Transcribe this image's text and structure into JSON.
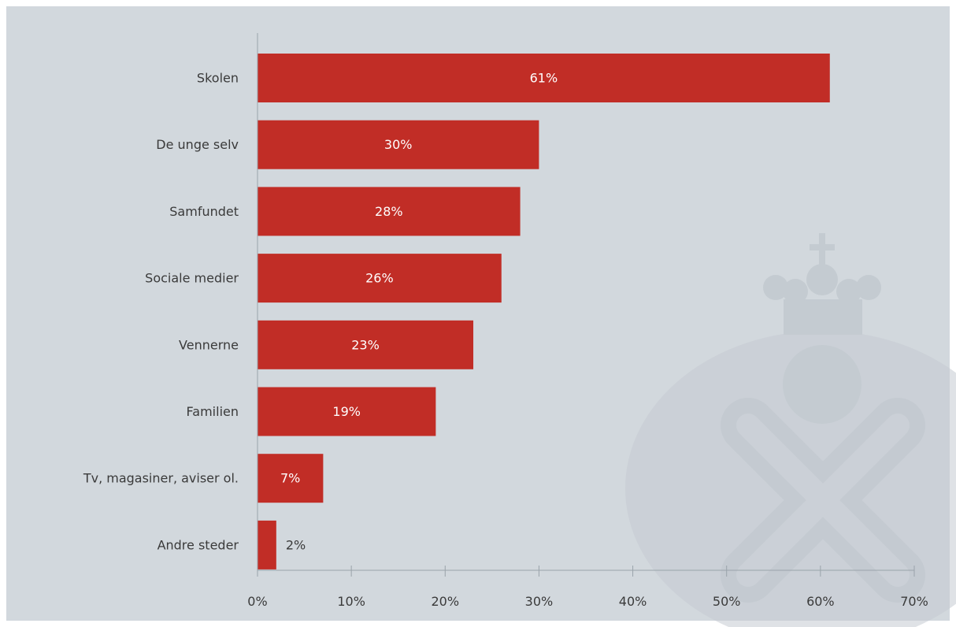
{
  "colors": {
    "panel": "#d2d8dd",
    "bar": "#c12d26",
    "axis": "#9aa3aa",
    "watermark": "#c4cbd1",
    "value_inside": "#ffffff",
    "value_outside": "#3a3a3a",
    "text": "#3a3a3a"
  },
  "watermark": {
    "icon": "crown-and-cross-logo"
  },
  "chart_data": {
    "type": "bar",
    "orientation": "horizontal",
    "categories": [
      "Skolen",
      "De unge selv",
      "Samfundet",
      "Sociale medier",
      "Vennerne",
      "Familien",
      "Tv, magasiner, aviser ol.",
      "Andre steder"
    ],
    "values": [
      61,
      30,
      28,
      26,
      23,
      19,
      7,
      2
    ],
    "value_labels": [
      "61%",
      "30%",
      "28%",
      "26%",
      "23%",
      "19%",
      "7%",
      "2%"
    ],
    "xlim": [
      0,
      70
    ],
    "x_ticks": [
      0,
      10,
      20,
      30,
      40,
      50,
      60,
      70
    ],
    "x_tick_labels": [
      "0%",
      "10%",
      "20%",
      "30%",
      "40%",
      "50%",
      "60%",
      "70%"
    ],
    "unit": "%",
    "grid": false,
    "legend": "none"
  }
}
